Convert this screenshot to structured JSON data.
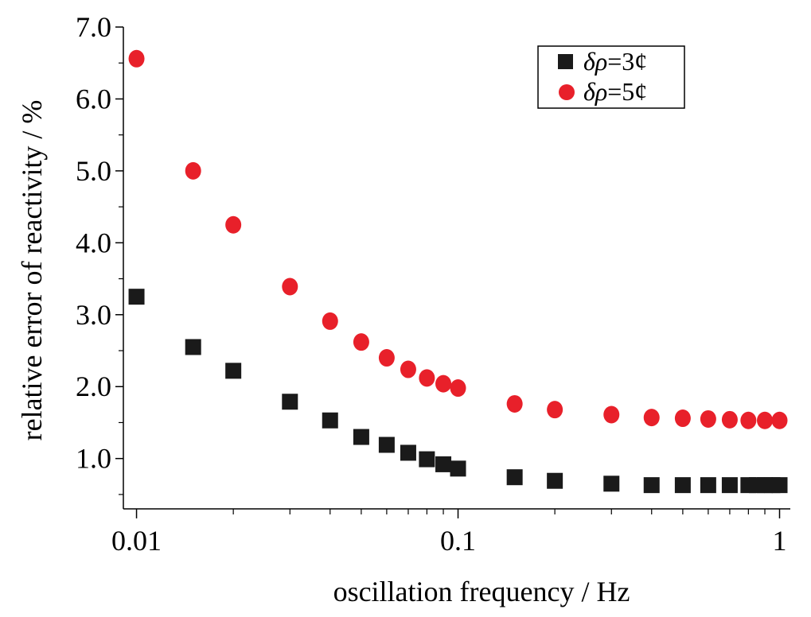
{
  "chart_data": {
    "type": "scatter",
    "xscale": "log",
    "xlim": [
      0.0091,
      1.08
    ],
    "ylim": [
      0.3,
      7.0
    ],
    "xlabel": "oscillation frequency / Hz",
    "ylabel": "relative error of reactivity / %",
    "x_ticks": [
      {
        "value": 0.01,
        "label": "0.01"
      },
      {
        "value": 0.1,
        "label": "0.1"
      },
      {
        "value": 1,
        "label": "1"
      }
    ],
    "y_ticks": [
      {
        "value": 1.0,
        "label": "1.0"
      },
      {
        "value": 2.0,
        "label": "2.0"
      },
      {
        "value": 3.0,
        "label": "3.0"
      },
      {
        "value": 4.0,
        "label": "4.0"
      },
      {
        "value": 5.0,
        "label": "5.0"
      },
      {
        "value": 6.0,
        "label": "6.0"
      },
      {
        "value": 7.0,
        "label": "7.0"
      }
    ],
    "legend_position": "top-right",
    "series": [
      {
        "name": "δρ=3¢",
        "label_symbol": "δρ",
        "label_value": "=3¢",
        "marker": "square",
        "color": "#1a1a1a",
        "points": [
          {
            "x": 0.01,
            "y": 3.25
          },
          {
            "x": 0.015,
            "y": 2.55
          },
          {
            "x": 0.02,
            "y": 2.22
          },
          {
            "x": 0.03,
            "y": 1.79
          },
          {
            "x": 0.04,
            "y": 1.53
          },
          {
            "x": 0.05,
            "y": 1.3
          },
          {
            "x": 0.06,
            "y": 1.19
          },
          {
            "x": 0.07,
            "y": 1.08
          },
          {
            "x": 0.08,
            "y": 0.99
          },
          {
            "x": 0.09,
            "y": 0.92
          },
          {
            "x": 0.1,
            "y": 0.86
          },
          {
            "x": 0.15,
            "y": 0.74
          },
          {
            "x": 0.2,
            "y": 0.69
          },
          {
            "x": 0.3,
            "y": 0.65
          },
          {
            "x": 0.4,
            "y": 0.63
          },
          {
            "x": 0.5,
            "y": 0.63
          },
          {
            "x": 0.6,
            "y": 0.63
          },
          {
            "x": 0.7,
            "y": 0.63
          },
          {
            "x": 0.8,
            "y": 0.63
          },
          {
            "x": 0.85,
            "y": 0.63
          },
          {
            "x": 0.9,
            "y": 0.63
          },
          {
            "x": 0.95,
            "y": 0.63
          },
          {
            "x": 1.0,
            "y": 0.63
          }
        ]
      },
      {
        "name": "δρ=5¢",
        "label_symbol": "δρ",
        "label_value": "=5¢",
        "marker": "circle",
        "color": "#e8202a",
        "points": [
          {
            "x": 0.01,
            "y": 6.56
          },
          {
            "x": 0.015,
            "y": 5.0
          },
          {
            "x": 0.02,
            "y": 4.25
          },
          {
            "x": 0.03,
            "y": 3.39
          },
          {
            "x": 0.04,
            "y": 2.91
          },
          {
            "x": 0.05,
            "y": 2.62
          },
          {
            "x": 0.06,
            "y": 2.4
          },
          {
            "x": 0.07,
            "y": 2.24
          },
          {
            "x": 0.08,
            "y": 2.12
          },
          {
            "x": 0.09,
            "y": 2.04
          },
          {
            "x": 0.1,
            "y": 1.98
          },
          {
            "x": 0.15,
            "y": 1.76
          },
          {
            "x": 0.2,
            "y": 1.68
          },
          {
            "x": 0.3,
            "y": 1.61
          },
          {
            "x": 0.4,
            "y": 1.57
          },
          {
            "x": 0.5,
            "y": 1.56
          },
          {
            "x": 0.6,
            "y": 1.55
          },
          {
            "x": 0.7,
            "y": 1.54
          },
          {
            "x": 0.8,
            "y": 1.53
          },
          {
            "x": 0.9,
            "y": 1.53
          },
          {
            "x": 1.0,
            "y": 1.53
          }
        ]
      }
    ]
  }
}
